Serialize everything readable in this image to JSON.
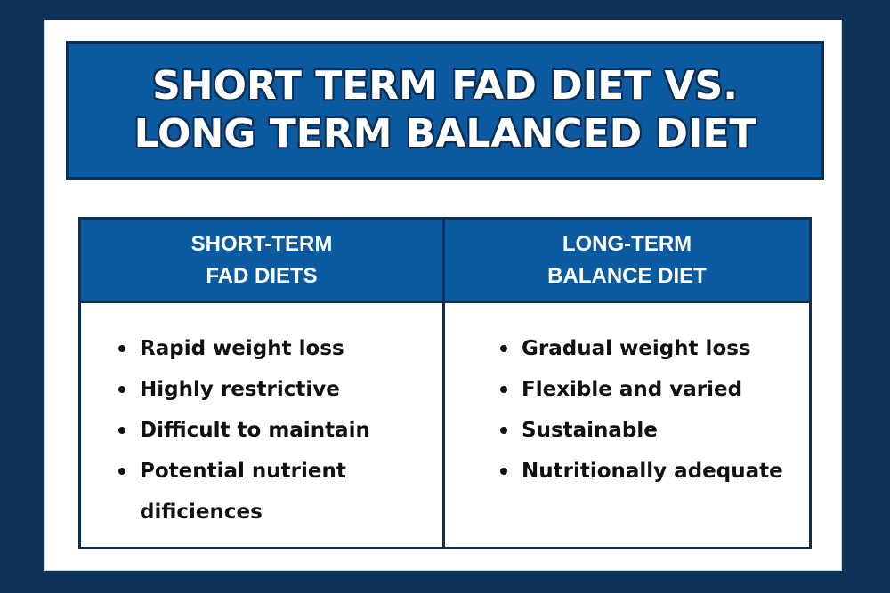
{
  "title": {
    "line1": "SHORT TERM FAD DIET VS.",
    "line2": "LONG TERM BALANCED DIET"
  },
  "columns": [
    {
      "header_line1": "SHORT-TERM",
      "header_line2": "FAD DIETS",
      "items": [
        "Rapid weight loss",
        "Highly restrictive",
        "Difficult to maintain",
        "Potential nutrient dificiences"
      ]
    },
    {
      "header_line1": "LONG-TERM",
      "header_line2": "BALANCE DIET",
      "items": [
        "Gradual weight loss",
        "Flexible and varied",
        "Sustainable",
        "Nutritionally adequate"
      ]
    }
  ],
  "colors": {
    "background": "#0e3158",
    "header_blue": "#0c5aa0",
    "border": "#0d2f55",
    "card": "#ffffff",
    "text": "#111111"
  }
}
